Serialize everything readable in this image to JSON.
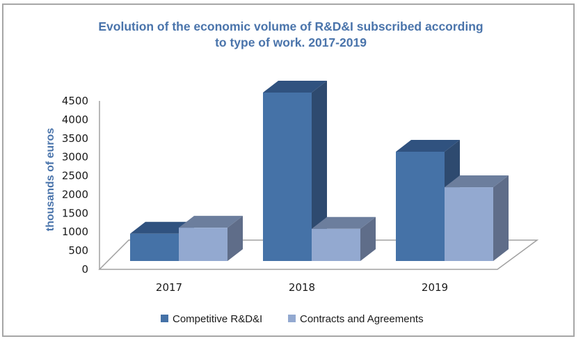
{
  "chart_data": {
    "type": "bar",
    "style": "3d-clustered-column",
    "title": "Evolution of the economic volume of R&D&I subscribed according to type of work. 2017-2019",
    "title_lines": [
      "Evolution of the economic volume of R&D&I subscribed according",
      "to type of work. 2017-2019"
    ],
    "xlabel": "",
    "ylabel": "thousands of euros",
    "categories": [
      "2017",
      "2018",
      "2019"
    ],
    "ylim": [
      0,
      4500
    ],
    "yticks": [
      "0",
      "500",
      "1000",
      "1500",
      "2000",
      "2500",
      "3000",
      "3500",
      "4000",
      "4500"
    ],
    "grid": false,
    "legend_position": "bottom",
    "series": [
      {
        "name": "Competitive R&D&I",
        "values": [
          730,
          4500,
          2920
        ],
        "color": "#4572a7",
        "top_color": "#30527f",
        "side_color": "#2e4a6f"
      },
      {
        "name": "Contracts and Agreements",
        "values": [
          890,
          860,
          1970
        ],
        "color": "#93a9d0",
        "top_color": "#6c7e9d",
        "side_color": "#5f6d89"
      }
    ]
  },
  "colors": {
    "title": "#4a74ab",
    "axis_line": "#a0a0a0",
    "frame_border": "#a6a6a6"
  }
}
